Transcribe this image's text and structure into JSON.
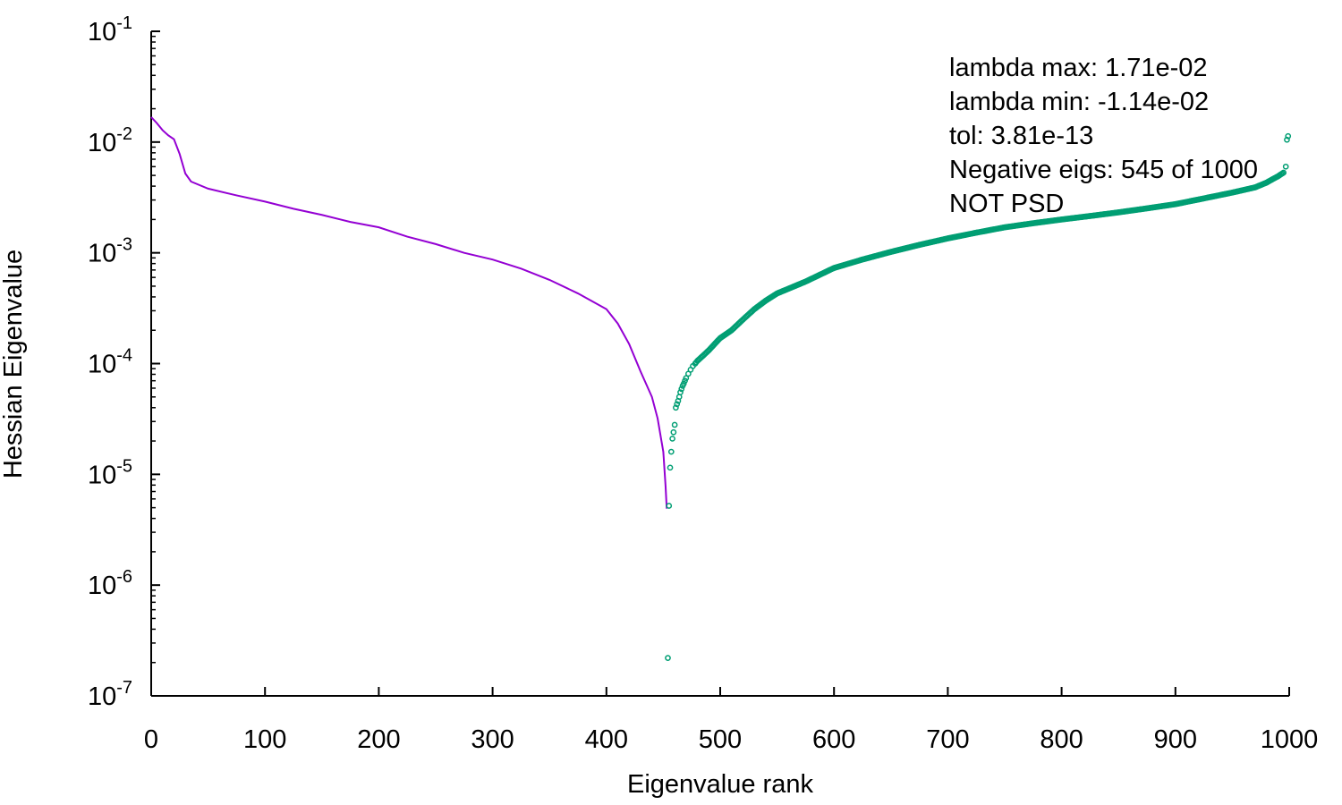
{
  "chart_data": {
    "type": "line",
    "title": "",
    "xlabel": "Eigenvalue rank",
    "ylabel": "Hessian Eigenvalue",
    "xlim": [
      0,
      1000
    ],
    "ylim": [
      1e-07,
      0.1
    ],
    "y_scale": "log",
    "grid": false,
    "x_ticks": [
      "0",
      "100",
      "200",
      "300",
      "400",
      "500",
      "600",
      "700",
      "800",
      "900",
      "1000"
    ],
    "y_ticks": [
      {
        "base": "10",
        "exp": "-7"
      },
      {
        "base": "10",
        "exp": "-6"
      },
      {
        "base": "10",
        "exp": "-5"
      },
      {
        "base": "10",
        "exp": "-4"
      },
      {
        "base": "10",
        "exp": "-3"
      },
      {
        "base": "10",
        "exp": "-2"
      },
      {
        "base": "10",
        "exp": "-1"
      }
    ],
    "annotations": [
      "lambda max: 1.71e-02",
      "lambda min: -1.14e-02",
      "tol: 3.81e-13",
      "Negative eigs: 545 of 1000",
      "NOT PSD"
    ],
    "series": [
      {
        "style": "line",
        "color": "#9400d3",
        "x": [
          0,
          5,
          10,
          15,
          20,
          25,
          30,
          35,
          50,
          75,
          100,
          125,
          150,
          175,
          200,
          225,
          250,
          275,
          300,
          325,
          350,
          375,
          400,
          410,
          420,
          430,
          440,
          445,
          450,
          452,
          453
        ],
        "y": [
          0.0168,
          0.0148,
          0.0128,
          0.0115,
          0.0106,
          0.0078,
          0.0052,
          0.0044,
          0.0038,
          0.0033,
          0.0029,
          0.0025,
          0.0022,
          0.0019,
          0.0017,
          0.0014,
          0.0012,
          0.001,
          0.00087,
          0.00072,
          0.00057,
          0.00043,
          0.00031,
          0.00023,
          0.00015,
          8.5e-05,
          5e-05,
          3.2e-05,
          1.6e-05,
          7.8e-06,
          4.9e-06
        ]
      },
      {
        "style": "markers",
        "color": "#009e73",
        "x": [
          454,
          455,
          456,
          457,
          458,
          459,
          460,
          461,
          462,
          463,
          464,
          465,
          466,
          467,
          468,
          469,
          470,
          472,
          474,
          476,
          478,
          480,
          485,
          490,
          495,
          500,
          510,
          520,
          530,
          540,
          550,
          575,
          600,
          625,
          650,
          675,
          700,
          725,
          750,
          775,
          800,
          825,
          850,
          875,
          900,
          925,
          950,
          970,
          980,
          985,
          990,
          995,
          997,
          998,
          999
        ],
        "y": [
          2.2e-07,
          5.2e-06,
          1.15e-05,
          1.6e-05,
          2.1e-05,
          2.4e-05,
          2.8e-05,
          4e-05,
          4.3e-05,
          4.6e-05,
          5e-05,
          5.5e-05,
          5.9e-05,
          6.3e-05,
          6.6e-05,
          7e-05,
          7.4e-05,
          8.1e-05,
          8.8e-05,
          9.5e-05,
          0.0001,
          0.000106,
          0.000118,
          0.000132,
          0.00015,
          0.00017,
          0.0002,
          0.00025,
          0.00031,
          0.00037,
          0.00043,
          0.00055,
          0.00073,
          0.00087,
          0.00102,
          0.00118,
          0.00135,
          0.00152,
          0.0017,
          0.00185,
          0.002,
          0.00215,
          0.00232,
          0.00252,
          0.00275,
          0.0031,
          0.0035,
          0.0039,
          0.0043,
          0.0046,
          0.0049,
          0.0053,
          0.006,
          0.0105,
          0.0113
        ]
      }
    ]
  }
}
